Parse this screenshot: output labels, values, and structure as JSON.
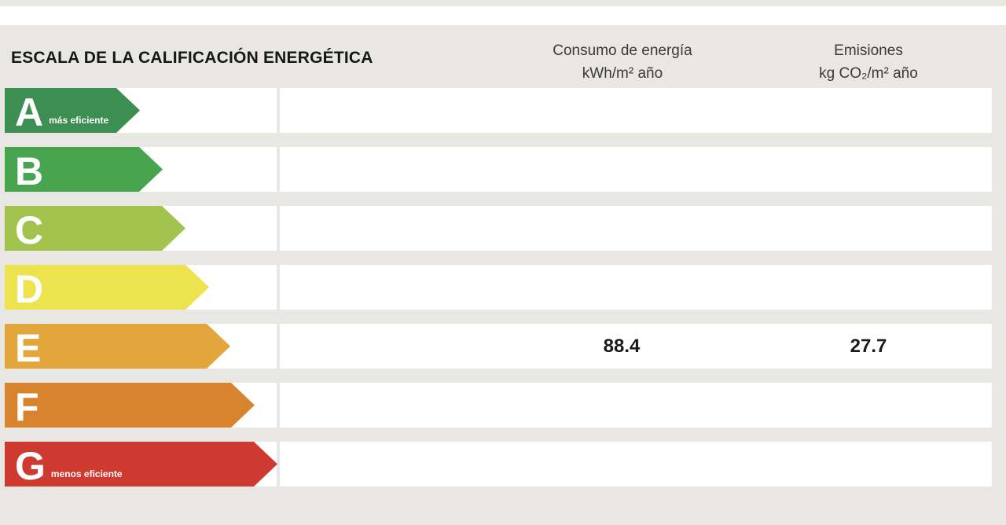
{
  "header": {
    "title": "ESCALA DE LA CALIFICACIÓN ENERGÉTICA",
    "consumo_col": {
      "line1": "Consumo de energía",
      "line2": "kWh/m² año"
    },
    "emisiones_col": {
      "line1": "Emisiones",
      "line2": "kg CO₂/m² año"
    }
  },
  "scale": {
    "rows": [
      {
        "letter": "A",
        "note": "más eficiente",
        "color": "#3c8f50",
        "arrow_width": 172,
        "consumo": "",
        "emisiones": ""
      },
      {
        "letter": "B",
        "note": "",
        "color": "#49a44f",
        "arrow_width": 201,
        "consumo": "",
        "emisiones": ""
      },
      {
        "letter": "C",
        "note": "",
        "color": "#a2c44e",
        "arrow_width": 230,
        "consumo": "",
        "emisiones": ""
      },
      {
        "letter": "D",
        "note": "",
        "color": "#ece34f",
        "arrow_width": 260,
        "consumo": "",
        "emisiones": ""
      },
      {
        "letter": "E",
        "note": "",
        "color": "#e2a63c",
        "arrow_width": 287,
        "consumo": "88.4",
        "emisiones": "27.7"
      },
      {
        "letter": "F",
        "note": "",
        "color": "#d8842f",
        "arrow_width": 318,
        "consumo": "",
        "emisiones": ""
      },
      {
        "letter": "G",
        "note": "menos eficiente",
        "color": "#cf3a30",
        "arrow_width": 347,
        "consumo": "",
        "emisiones": ""
      }
    ]
  },
  "colors": {
    "background": "#e9e7e4",
    "row_band": "#ffffff",
    "value_text": "#1a1a1a",
    "header_text": "#3a3a3a"
  },
  "chart_data": {
    "type": "bar",
    "title": "ESCALA DE LA CALIFICACIÓN ENERGÉTICA",
    "categories": [
      "A",
      "B",
      "C",
      "D",
      "E",
      "F",
      "G"
    ],
    "bar_colors": [
      "#3c8f50",
      "#49a44f",
      "#a2c44e",
      "#ece34f",
      "#e2a63c",
      "#d8842f",
      "#cf3a30"
    ],
    "bar_relative_lengths": [
      172,
      201,
      230,
      260,
      287,
      318,
      347
    ],
    "series": [
      {
        "name": "Consumo de energía kWh/m² año",
        "values": [
          null,
          null,
          null,
          null,
          88.4,
          null,
          null
        ]
      },
      {
        "name": "Emisiones kg CO₂/m² año",
        "values": [
          null,
          null,
          null,
          null,
          27.7,
          null,
          null
        ]
      }
    ],
    "rated_letter": "E",
    "annotations": [
      "A: más eficiente",
      "G: menos eficiente"
    ],
    "legend_position": "none",
    "grid": false
  }
}
